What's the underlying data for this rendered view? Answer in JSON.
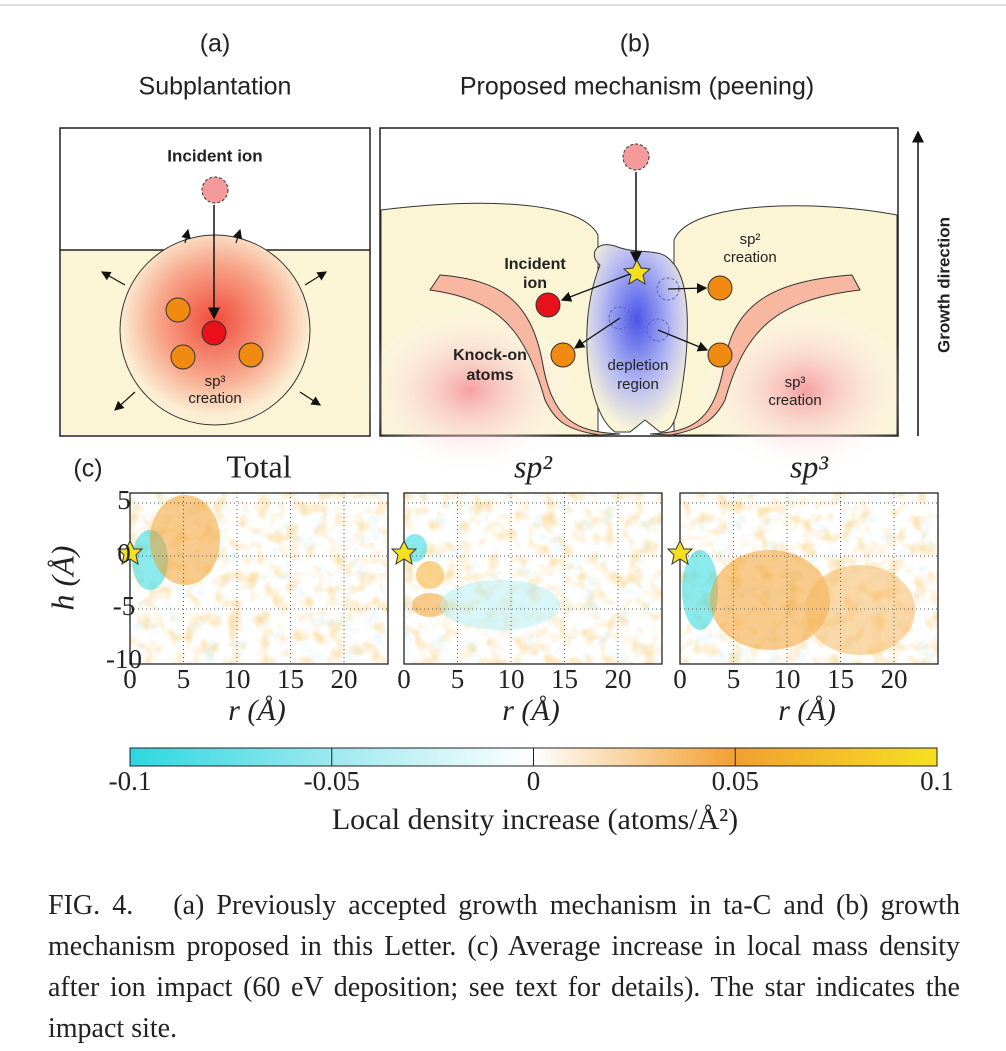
{
  "panel_a": {
    "label": "(a)",
    "title": "Subplantation",
    "incident_ion": "Incident ion",
    "creation_lines": [
      "sp³",
      "creation"
    ]
  },
  "panel_b": {
    "label": "(b)",
    "title": "Proposed mechanism (peening)",
    "incident_ion_lines": [
      "Incident",
      "ion"
    ],
    "knock_on_lines": [
      "Knock-on",
      "atoms"
    ],
    "depletion_lines": [
      "depletion",
      "region"
    ],
    "sp2_lines": [
      "sp²",
      "creation"
    ],
    "sp3_lines": [
      "sp³",
      "creation"
    ],
    "growth_direction": "Growth direction"
  },
  "panel_c": {
    "label": "(c)",
    "titles": [
      "Total",
      "sp²",
      "sp³"
    ],
    "y_label": "h (Å)",
    "x_label": "r (Å)",
    "y_ticks": [
      "5",
      "0",
      "-5",
      "-10"
    ],
    "x_ticks": [
      "0",
      "5",
      "10",
      "15",
      "20"
    ],
    "colorbar_ticks": [
      "-0.1",
      "-0.05",
      "0",
      "0.05",
      "0.1"
    ],
    "colorbar_label": "Local density increase (atoms/Å²)"
  },
  "caption": "FIG. 4.  (a) Previously accepted growth mechanism in ta-C and (b) growth mechanism proposed in this Letter. (c) Average increase in local mass density after ion impact (60 eV deposition; see text for details). The star indicates the impact site."
}
